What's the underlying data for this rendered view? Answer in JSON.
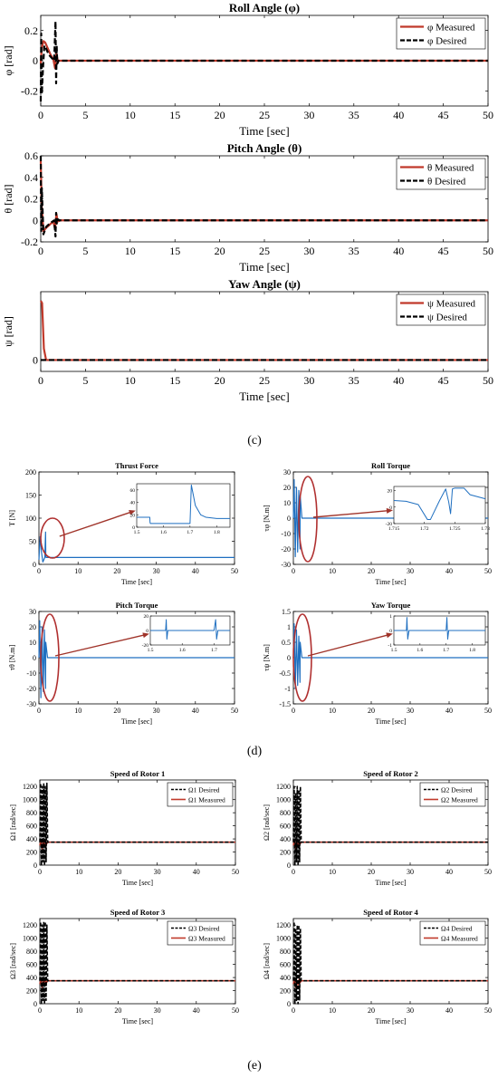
{
  "figure_labels": {
    "c": "(c)",
    "d": "(d)",
    "e": "(e)"
  },
  "colors": {
    "measured": "#c0392b",
    "desired": "#000000",
    "blue": "#1f6fc0",
    "axis": "#000000",
    "grid": "#dddddd",
    "ellipse": "#b03030",
    "arrow": "#a0342a"
  },
  "chart_data": [
    {
      "id": "roll_angle",
      "type": "line",
      "title": "Roll Angle (φ)",
      "xlabel": "Time [sec]",
      "ylabel": "φ [rad]",
      "xlim": [
        0,
        50
      ],
      "ylim": [
        -0.3,
        0.3
      ],
      "xticks": [
        0,
        5,
        10,
        15,
        20,
        25,
        30,
        35,
        40,
        45,
        50
      ],
      "yticks": [
        -0.2,
        0,
        0.2
      ],
      "ytick_labels": [
        "-0.2",
        "0",
        "0.2"
      ],
      "legend_position": "top-right",
      "series": [
        {
          "name": "φ Measured",
          "style": "measured",
          "x": [
            0,
            0.1,
            0.3,
            0.5,
            0.8,
            1.1,
            1.4,
            1.6,
            1.75,
            1.9,
            2.2,
            3,
            50
          ],
          "y": [
            -0.02,
            0.08,
            0.13,
            0.12,
            0.08,
            0.04,
            0.01,
            -0.05,
            0.05,
            0.0,
            0.0,
            0.0,
            0.0
          ]
        },
        {
          "name": "φ Desired",
          "style": "desired",
          "x": [
            0,
            0.05,
            0.12,
            0.25,
            0.4,
            0.6,
            0.9,
            1.2,
            1.5,
            1.65,
            1.72,
            1.78,
            1.85,
            2,
            50
          ],
          "y": [
            -0.27,
            0.18,
            -0.22,
            -0.05,
            0.1,
            0.08,
            0.04,
            0.02,
            0.0,
            0.26,
            -0.15,
            0.1,
            -0.02,
            0.0,
            0.0
          ]
        }
      ]
    },
    {
      "id": "pitch_angle",
      "type": "line",
      "title": "Pitch Angle (θ)",
      "xlabel": "Time [sec]",
      "ylabel": "θ [rad]",
      "xlim": [
        0,
        50
      ],
      "ylim": [
        -0.2,
        0.6
      ],
      "xticks": [
        0,
        5,
        10,
        15,
        20,
        25,
        30,
        35,
        40,
        45,
        50
      ],
      "yticks": [
        -0.2,
        0,
        0.2,
        0.4,
        0.6
      ],
      "ytick_labels": [
        "-0.2",
        "0",
        "0.2",
        "0.4",
        "0.6"
      ],
      "legend_position": "top-right",
      "series": [
        {
          "name": "θ Measured",
          "style": "measured",
          "x": [
            0,
            0.1,
            0.3,
            0.6,
            1.0,
            1.4,
            1.6,
            1.75,
            1.9,
            2.2,
            50
          ],
          "y": [
            0.55,
            0.15,
            -0.1,
            -0.07,
            -0.04,
            -0.01,
            -0.08,
            0.06,
            -0.01,
            0.0,
            0.0
          ]
        },
        {
          "name": "θ Desired",
          "style": "desired",
          "x": [
            0,
            0.05,
            0.12,
            0.3,
            0.6,
            1.0,
            1.5,
            1.65,
            1.72,
            1.8,
            1.9,
            2.1,
            50
          ],
          "y": [
            0.6,
            -0.1,
            0.3,
            -0.13,
            -0.06,
            -0.03,
            0.0,
            -0.15,
            0.07,
            -0.03,
            0.01,
            0.0,
            0.0
          ]
        }
      ]
    },
    {
      "id": "yaw_angle",
      "type": "line",
      "title": "Yaw Angle (ψ)",
      "xlabel": "Time [sec]",
      "ylabel": "ψ [rad]",
      "xlim": [
        0,
        50
      ],
      "ylim": [
        -0.1,
        0.6
      ],
      "xticks": [
        0,
        5,
        10,
        15,
        20,
        25,
        30,
        35,
        40,
        45,
        50
      ],
      "yticks": [
        0
      ],
      "ytick_labels": [
        "0"
      ],
      "legend_position": "top-right",
      "series": [
        {
          "name": "ψ Measured",
          "style": "measured",
          "x": [
            0,
            0.15,
            0.35,
            0.6,
            50
          ],
          "y": [
            0.52,
            0.5,
            0.1,
            0.0,
            0.0
          ]
        },
        {
          "name": "ψ Desired",
          "style": "desired",
          "x": [
            0,
            0.3,
            0.5,
            50
          ],
          "y": [
            0.0,
            0.0,
            0.0,
            0.0
          ]
        }
      ]
    },
    {
      "id": "thrust_force",
      "type": "line",
      "title": "Thrust Force",
      "xlabel": "Time [sec]",
      "ylabel": "T [N]",
      "xlim": [
        0,
        50
      ],
      "ylim": [
        0,
        200
      ],
      "xticks": [
        0,
        10,
        20,
        30,
        40,
        50
      ],
      "yticks": [
        0,
        50,
        100,
        150,
        200
      ],
      "ytick_labels": [
        "0",
        "50",
        "100",
        "150",
        "200"
      ],
      "series": [
        {
          "style": "blue",
          "x": [
            0,
            0.3,
            0.6,
            1.0,
            1.5,
            1.7,
            1.75,
            1.8,
            2.0,
            50
          ],
          "y": [
            10,
            60,
            30,
            5,
            15,
            70,
            20,
            15,
            15,
            15
          ]
        }
      ],
      "inset": {
        "xlim": [
          1.5,
          1.85
        ],
        "ylim": [
          0,
          70
        ],
        "xticks": [
          1.5,
          1.6,
          1.7,
          1.8
        ],
        "xtick_labels": [
          "1.5",
          "1.6",
          "1.7",
          "1.8"
        ],
        "yticks": [
          0,
          20,
          40,
          60
        ],
        "ytick_labels": [
          "0",
          "20",
          "40",
          "60"
        ],
        "x": [
          1.5,
          1.549,
          1.55,
          1.551,
          1.699,
          1.7,
          1.705,
          1.72,
          1.74,
          1.76,
          1.8,
          1.85
        ],
        "y": [
          16,
          16,
          8,
          6,
          6,
          6,
          68,
          35,
          20,
          16,
          14,
          14
        ]
      }
    },
    {
      "id": "roll_torque",
      "type": "line",
      "title": "Roll Torque",
      "xlabel": "Time [sec]",
      "ylabel": "τφ [N.m]",
      "xlim": [
        0,
        50
      ],
      "ylim": [
        -30,
        30
      ],
      "xticks": [
        0,
        10,
        20,
        30,
        40,
        50
      ],
      "yticks": [
        -30,
        -20,
        -10,
        0,
        10,
        20,
        30
      ],
      "ytick_labels": [
        "-30",
        "-20",
        "-10",
        "0",
        "10",
        "20",
        "30"
      ],
      "series": [
        {
          "style": "blue",
          "x": [
            0,
            0.2,
            0.5,
            0.8,
            1.1,
            1.4,
            1.7,
            1.75,
            2.2,
            50
          ],
          "y": [
            0,
            25,
            -25,
            20,
            -22,
            18,
            -20,
            15,
            0,
            0
          ]
        }
      ],
      "inset": {
        "xlim": [
          1.715,
          1.73
        ],
        "ylim": [
          -20,
          25
        ],
        "xticks": [
          1.715,
          1.72,
          1.725,
          1.73
        ],
        "xtick_labels": [
          "1.715",
          "1.72",
          "1.725",
          "1.73"
        ],
        "yticks": [
          -20,
          0,
          20
        ],
        "ytick_labels": [
          "-20",
          "0",
          "20"
        ],
        "x": [
          1.715,
          1.717,
          1.719,
          1.7205,
          1.721,
          1.7225,
          1.7235,
          1.724,
          1.7243,
          1.7246,
          1.725,
          1.7265,
          1.7275,
          1.73
        ],
        "y": [
          8,
          7,
          3,
          -15,
          -15,
          8,
          22,
          6,
          -8,
          22,
          23,
          23,
          15,
          10
        ]
      }
    },
    {
      "id": "pitch_torque",
      "type": "line",
      "title": "Pitch Torque",
      "xlabel": "Time [sec]",
      "ylabel": "τθ [N.m]",
      "xlim": [
        0,
        50
      ],
      "ylim": [
        -30,
        30
      ],
      "xticks": [
        0,
        10,
        20,
        30,
        40,
        50
      ],
      "yticks": [
        -30,
        -20,
        -10,
        0,
        10,
        20,
        30
      ],
      "ytick_labels": [
        "-30",
        "-20",
        "-10",
        "0",
        "10",
        "20",
        "30"
      ],
      "series": [
        {
          "style": "blue",
          "x": [
            0,
            0.2,
            0.5,
            0.8,
            1.1,
            1.4,
            1.7,
            1.75,
            2.2,
            50
          ],
          "y": [
            0,
            24,
            -26,
            20,
            -22,
            18,
            -20,
            10,
            0,
            0
          ]
        }
      ],
      "inset": {
        "xlim": [
          1.5,
          1.75
        ],
        "ylim": [
          -20,
          20
        ],
        "xticks": [
          1.5,
          1.6,
          1.7
        ],
        "xtick_labels": [
          "1.5",
          "1.6",
          "1.7"
        ],
        "yticks": [
          -20,
          0,
          20
        ],
        "ytick_labels": [
          "-20",
          "0",
          "20"
        ],
        "x": [
          1.5,
          1.548,
          1.55,
          1.552,
          1.555,
          1.7,
          1.705,
          1.708,
          1.712,
          1.75
        ],
        "y": [
          0,
          0,
          15,
          -12,
          0,
          0,
          15,
          -12,
          0,
          0
        ]
      }
    },
    {
      "id": "yaw_torque",
      "type": "line",
      "title": "Yaw Torque",
      "xlabel": "Time [sec]",
      "ylabel": "τψ [N.m]",
      "xlim": [
        0,
        50
      ],
      "ylim": [
        -1.5,
        1.5
      ],
      "xticks": [
        0,
        10,
        20,
        30,
        40,
        50
      ],
      "yticks": [
        -1.5,
        -1,
        -0.5,
        0,
        0.5,
        1,
        1.5
      ],
      "ytick_labels": [
        "-1.5",
        "-1",
        "-0.5",
        "0",
        "0.5",
        "1",
        "1.5"
      ],
      "series": [
        {
          "style": "blue",
          "x": [
            0,
            0.2,
            0.5,
            0.8,
            1.1,
            1.4,
            1.7,
            1.75,
            2.2,
            50
          ],
          "y": [
            0,
            1.1,
            -1.0,
            0.9,
            -0.9,
            0.7,
            -0.8,
            0.5,
            0,
            0
          ]
        }
      ],
      "inset": {
        "xlim": [
          1.5,
          1.85
        ],
        "ylim": [
          -1,
          1
        ],
        "xticks": [
          1.5,
          1.6,
          1.7,
          1.8
        ],
        "xtick_labels": [
          "1.5",
          "1.6",
          "1.7",
          "1.8"
        ],
        "yticks": [
          -1,
          0,
          1
        ],
        "ytick_labels": [
          "-1",
          "0",
          "1"
        ],
        "x": [
          1.5,
          1.548,
          1.55,
          1.553,
          1.558,
          1.7,
          1.703,
          1.706,
          1.71,
          1.85
        ],
        "y": [
          0,
          0,
          0.9,
          -0.6,
          0,
          0,
          0.9,
          -0.6,
          0,
          0
        ]
      }
    },
    {
      "id": "rotor_1",
      "type": "line",
      "title": "Speed of Rotor 1",
      "xlabel": "Time [sec]",
      "ylabel": "Ω1 [rad/sec]",
      "xlim": [
        0,
        50
      ],
      "ylim": [
        0,
        1300
      ],
      "xticks": [
        0,
        10,
        20,
        30,
        40,
        50
      ],
      "yticks": [
        0,
        200,
        400,
        600,
        800,
        1000,
        1200
      ],
      "ytick_labels": [
        "0",
        "200",
        "400",
        "600",
        "800",
        "1000",
        "1200"
      ],
      "legend_position": "top-right",
      "series": [
        {
          "name": "Ω1 Desired",
          "style": "desired",
          "x": [
            0,
            0.2,
            0.4,
            0.6,
            0.8,
            1.0,
            1.2,
            1.4,
            1.6,
            1.8,
            2.0,
            2.2,
            50
          ],
          "y": [
            350,
            1250,
            0,
            1200,
            50,
            1250,
            0,
            1200,
            50,
            1250,
            350,
            350,
            350
          ]
        },
        {
          "name": "Ω1 Measured",
          "style": "measured",
          "x": [
            0,
            0.3,
            0.6,
            0.9,
            1.2,
            1.5,
            1.7,
            2.0,
            50
          ],
          "y": [
            300,
            380,
            250,
            350,
            290,
            370,
            320,
            350,
            350
          ]
        }
      ]
    },
    {
      "id": "rotor_2",
      "type": "line",
      "title": "Speed of Rotor 2",
      "xlabel": "Time [sec]",
      "ylabel": "Ω2 [rad/sec]",
      "xlim": [
        0,
        50
      ],
      "ylim": [
        0,
        1300
      ],
      "xticks": [
        0,
        10,
        20,
        30,
        40,
        50
      ],
      "yticks": [
        0,
        200,
        400,
        600,
        800,
        1000,
        1200
      ],
      "ytick_labels": [
        "0",
        "200",
        "400",
        "600",
        "800",
        "1000",
        "1200"
      ],
      "legend_position": "top-right",
      "series": [
        {
          "name": "Ω2 Desired",
          "style": "desired",
          "x": [
            0,
            0.2,
            0.4,
            0.6,
            0.8,
            1.0,
            1.2,
            1.4,
            1.6,
            1.8,
            2.0,
            2.2,
            50
          ],
          "y": [
            350,
            1200,
            0,
            1100,
            50,
            1200,
            0,
            1150,
            50,
            1200,
            350,
            350,
            350
          ]
        },
        {
          "name": "Ω2 Measured",
          "style": "measured",
          "x": [
            0,
            0.3,
            0.6,
            0.9,
            1.2,
            1.5,
            1.7,
            2.0,
            50
          ],
          "y": [
            300,
            380,
            250,
            350,
            290,
            370,
            320,
            350,
            350
          ]
        }
      ]
    },
    {
      "id": "rotor_3",
      "type": "line",
      "title": "Speed of Rotor 3",
      "xlabel": "Time [sec]",
      "ylabel": "Ω3 [rad/sec]",
      "xlim": [
        0,
        50
      ],
      "ylim": [
        0,
        1300
      ],
      "xticks": [
        0,
        10,
        20,
        30,
        40,
        50
      ],
      "yticks": [
        0,
        200,
        400,
        600,
        800,
        1000,
        1200
      ],
      "ytick_labels": [
        "0",
        "200",
        "400",
        "600",
        "800",
        "1000",
        "1200"
      ],
      "legend_position": "top-right",
      "series": [
        {
          "name": "Ω3 Desired",
          "style": "desired",
          "x": [
            0,
            0.2,
            0.4,
            0.6,
            0.8,
            1.0,
            1.2,
            1.4,
            1.6,
            1.8,
            2.0,
            2.2,
            50
          ],
          "y": [
            350,
            1250,
            0,
            1200,
            50,
            1250,
            0,
            1250,
            50,
            1200,
            350,
            350,
            350
          ]
        },
        {
          "name": "Ω3 Measured",
          "style": "measured",
          "x": [
            0,
            0.3,
            0.6,
            0.9,
            1.2,
            1.5,
            1.7,
            2.0,
            50
          ],
          "y": [
            300,
            380,
            250,
            350,
            290,
            370,
            320,
            350,
            350
          ]
        }
      ]
    },
    {
      "id": "rotor_4",
      "type": "line",
      "title": "Speed of Rotor 4",
      "xlabel": "Time [sec]",
      "ylabel": "Ω4 [rad/sec]",
      "xlim": [
        0,
        50
      ],
      "ylim": [
        0,
        1300
      ],
      "xticks": [
        0,
        10,
        20,
        30,
        40,
        50
      ],
      "yticks": [
        0,
        200,
        400,
        600,
        800,
        1000,
        1200
      ],
      "ytick_labels": [
        "0",
        "200",
        "400",
        "600",
        "800",
        "1000",
        "1200"
      ],
      "legend_position": "top-right",
      "series": [
        {
          "name": "Ω4 Desired",
          "style": "desired",
          "x": [
            0,
            0.2,
            0.4,
            0.6,
            0.8,
            1.0,
            1.2,
            1.4,
            1.6,
            1.8,
            2.0,
            2.2,
            50
          ],
          "y": [
            350,
            1250,
            0,
            1150,
            50,
            1200,
            0,
            1200,
            50,
            1150,
            350,
            350,
            350
          ]
        },
        {
          "name": "Ω4 Measured",
          "style": "measured",
          "x": [
            0,
            0.3,
            0.6,
            0.9,
            1.2,
            1.5,
            1.7,
            2.0,
            50
          ],
          "y": [
            300,
            380,
            250,
            350,
            290,
            370,
            320,
            350,
            350
          ]
        }
      ]
    }
  ]
}
